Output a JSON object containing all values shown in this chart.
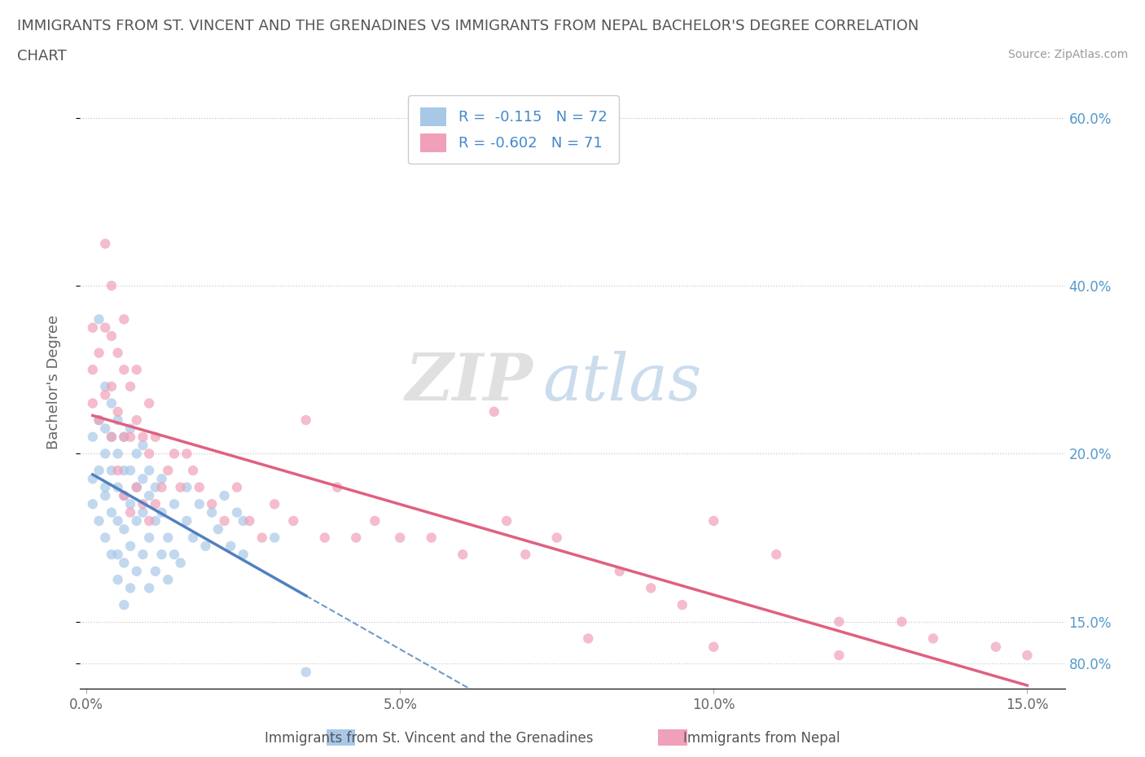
{
  "title_line1": "IMMIGRANTS FROM ST. VINCENT AND THE GRENADINES VS IMMIGRANTS FROM NEPAL BACHELOR'S DEGREE CORRELATION",
  "title_line2": "CHART",
  "source": "Source: ZipAtlas.com",
  "ylabel": "Bachelor's Degree",
  "xlim": [
    -0.001,
    0.156
  ],
  "ylim": [
    0.12,
    0.85
  ],
  "yticks": [
    0.2,
    0.4,
    0.6,
    0.8
  ],
  "yticklabels_right": [
    "20.0%",
    "40.0%",
    "60.0%",
    "80.0%"
  ],
  "ytick_extra": 0.15,
  "ytick_extra_label": "15.0%",
  "xticks": [
    0.0,
    0.05,
    0.1,
    0.15
  ],
  "xticklabels": [
    "0.0%",
    "5.0%",
    "10.0%",
    "15.0%"
  ],
  "legend_label1": "R =  -0.115   N = 72",
  "legend_label2": "R = -0.602   N = 71",
  "bottom_label1": "Immigrants from St. Vincent and the Grenadines",
  "bottom_label2": "Immigrants from Nepal",
  "color_blue": "#A8C8E8",
  "color_pink": "#F0A0B8",
  "color_blue_line": "#5080C0",
  "color_pink_line": "#E06080",
  "color_dashed": "#8888CC",
  "blue_scatter_x": [
    0.001,
    0.001,
    0.001,
    0.002,
    0.002,
    0.002,
    0.002,
    0.003,
    0.003,
    0.003,
    0.003,
    0.003,
    0.003,
    0.004,
    0.004,
    0.004,
    0.004,
    0.004,
    0.005,
    0.005,
    0.005,
    0.005,
    0.005,
    0.005,
    0.006,
    0.006,
    0.006,
    0.006,
    0.006,
    0.006,
    0.007,
    0.007,
    0.007,
    0.007,
    0.007,
    0.008,
    0.008,
    0.008,
    0.008,
    0.009,
    0.009,
    0.009,
    0.009,
    0.01,
    0.01,
    0.01,
    0.01,
    0.011,
    0.011,
    0.011,
    0.012,
    0.012,
    0.012,
    0.013,
    0.013,
    0.014,
    0.014,
    0.015,
    0.016,
    0.016,
    0.017,
    0.018,
    0.019,
    0.02,
    0.021,
    0.022,
    0.023,
    0.024,
    0.025,
    0.025,
    0.03,
    0.035
  ],
  "blue_scatter_y": [
    0.37,
    0.42,
    0.34,
    0.38,
    0.32,
    0.44,
    0.56,
    0.35,
    0.43,
    0.48,
    0.3,
    0.36,
    0.4,
    0.28,
    0.33,
    0.38,
    0.42,
    0.46,
    0.25,
    0.28,
    0.32,
    0.36,
    0.4,
    0.44,
    0.22,
    0.27,
    0.31,
    0.35,
    0.38,
    0.42,
    0.24,
    0.29,
    0.34,
    0.38,
    0.43,
    0.26,
    0.32,
    0.36,
    0.4,
    0.28,
    0.33,
    0.37,
    0.41,
    0.24,
    0.3,
    0.35,
    0.38,
    0.26,
    0.32,
    0.36,
    0.28,
    0.33,
    0.37,
    0.25,
    0.3,
    0.28,
    0.34,
    0.27,
    0.32,
    0.36,
    0.3,
    0.34,
    0.29,
    0.33,
    0.31,
    0.35,
    0.29,
    0.33,
    0.32,
    0.28,
    0.3,
    0.14
  ],
  "pink_scatter_x": [
    0.001,
    0.001,
    0.001,
    0.002,
    0.002,
    0.003,
    0.003,
    0.003,
    0.004,
    0.004,
    0.004,
    0.004,
    0.005,
    0.005,
    0.005,
    0.006,
    0.006,
    0.006,
    0.006,
    0.007,
    0.007,
    0.007,
    0.008,
    0.008,
    0.008,
    0.009,
    0.009,
    0.01,
    0.01,
    0.01,
    0.011,
    0.011,
    0.012,
    0.013,
    0.014,
    0.015,
    0.016,
    0.017,
    0.018,
    0.02,
    0.022,
    0.024,
    0.026,
    0.028,
    0.03,
    0.033,
    0.035,
    0.038,
    0.04,
    0.043,
    0.046,
    0.05,
    0.055,
    0.06,
    0.065,
    0.067,
    0.07,
    0.075,
    0.08,
    0.085,
    0.09,
    0.095,
    0.1,
    0.1,
    0.11,
    0.12,
    0.12,
    0.13,
    0.135,
    0.145,
    0.15
  ],
  "pink_scatter_y": [
    0.46,
    0.5,
    0.55,
    0.44,
    0.52,
    0.47,
    0.55,
    0.65,
    0.42,
    0.48,
    0.54,
    0.6,
    0.38,
    0.45,
    0.52,
    0.35,
    0.42,
    0.5,
    0.56,
    0.33,
    0.42,
    0.48,
    0.36,
    0.44,
    0.5,
    0.34,
    0.42,
    0.32,
    0.4,
    0.46,
    0.34,
    0.42,
    0.36,
    0.38,
    0.4,
    0.36,
    0.4,
    0.38,
    0.36,
    0.34,
    0.32,
    0.36,
    0.32,
    0.3,
    0.34,
    0.32,
    0.44,
    0.3,
    0.36,
    0.3,
    0.32,
    0.3,
    0.3,
    0.28,
    0.45,
    0.32,
    0.28,
    0.3,
    0.18,
    0.26,
    0.24,
    0.22,
    0.32,
    0.17,
    0.28,
    0.16,
    0.2,
    0.2,
    0.18,
    0.17,
    0.16
  ]
}
